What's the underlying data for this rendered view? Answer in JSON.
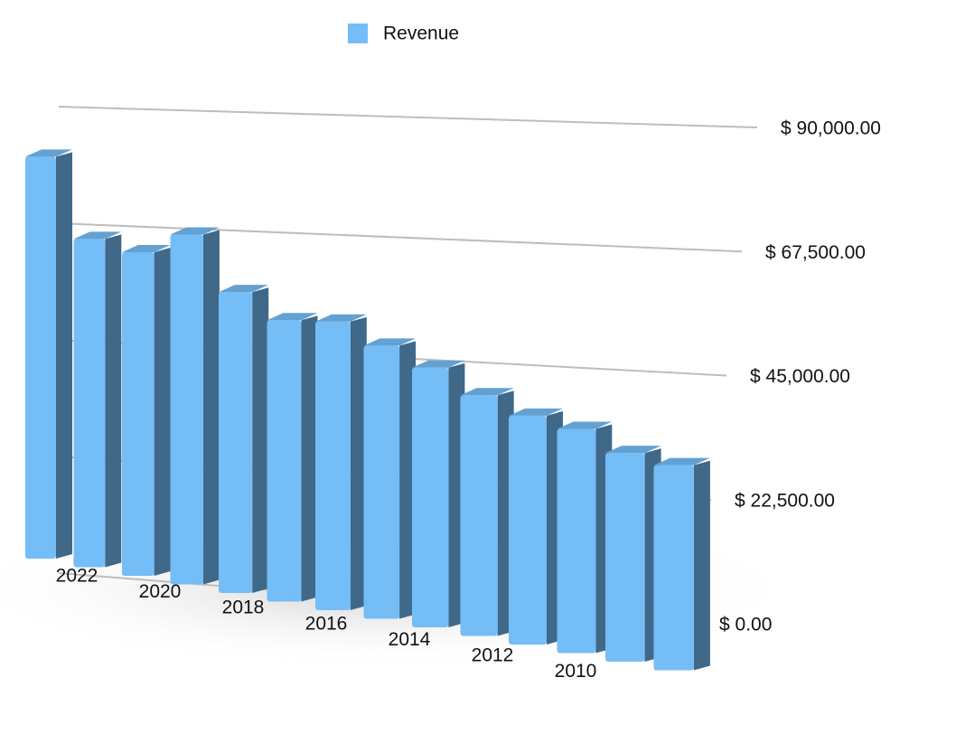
{
  "chart_data": {
    "type": "bar",
    "categories": [
      "2022",
      null,
      "2020",
      null,
      "2018",
      null,
      "2016",
      null,
      "2014",
      null,
      "2012",
      null,
      "2010",
      null
    ],
    "series": [
      {
        "name": "Revenue",
        "color": "#74bdf7",
        "values": [
          78000,
          63700,
          62800,
          67900,
          58400,
          54600,
          56000,
          53000,
          50400,
          46700,
          44400,
          43500,
          40500,
          39800
        ]
      }
    ],
    "ylim": [
      0,
      90000
    ],
    "yticks": [
      {
        "value": 0,
        "label": "$ 0.00"
      },
      {
        "value": 22500,
        "label": "$ 22,500.00"
      },
      {
        "value": 45000,
        "label": "$ 45,000.00"
      },
      {
        "value": 67500,
        "label": "$ 67,500.00"
      },
      {
        "value": 90000,
        "label": "$ 90,000.00"
      }
    ],
    "grid": true,
    "legend": "top"
  }
}
